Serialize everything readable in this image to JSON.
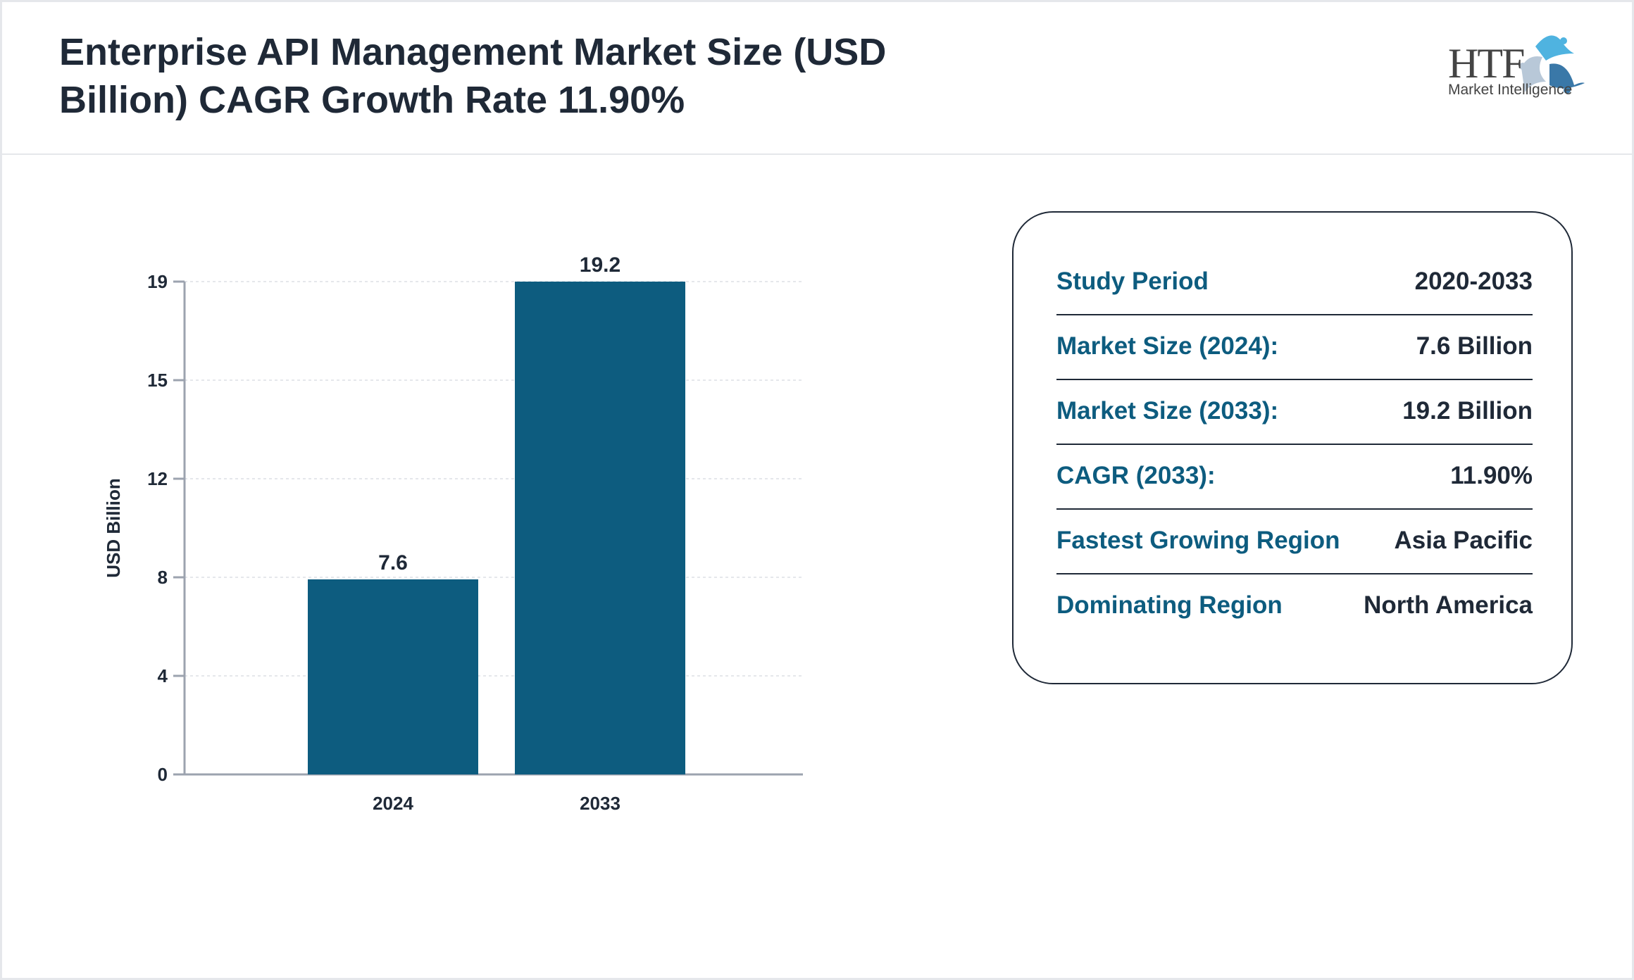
{
  "header": {
    "title": "Enterprise API Management Market Size (USD Billion) CAGR Growth Rate 11.90%",
    "logo": {
      "main": "HTF",
      "sub": "Market Intelligence"
    }
  },
  "chart_data": {
    "type": "bar",
    "categories": [
      "2024",
      "2033"
    ],
    "values": [
      7.6,
      19.2
    ],
    "data_labels": [
      "7.6",
      "19.2"
    ],
    "title": "",
    "xlabel": "",
    "ylabel": "USD Billion",
    "ylim": [
      0,
      19.2
    ],
    "yticks": [
      0,
      4,
      8,
      12,
      15,
      19
    ],
    "grid": true,
    "bar_color": "#0d5c7f"
  },
  "summary": [
    {
      "label": "Study Period",
      "value": "2020-2033"
    },
    {
      "label": "Market Size (2024):",
      "value": "7.6 Billion"
    },
    {
      "label": "Market Size (2033):",
      "value": "19.2 Billion"
    },
    {
      "label": "CAGR (2033):",
      "value": "11.90%"
    },
    {
      "label": "Fastest Growing Region",
      "value": "Asia Pacific"
    },
    {
      "label": "Dominating Region",
      "value": "North America"
    }
  ]
}
